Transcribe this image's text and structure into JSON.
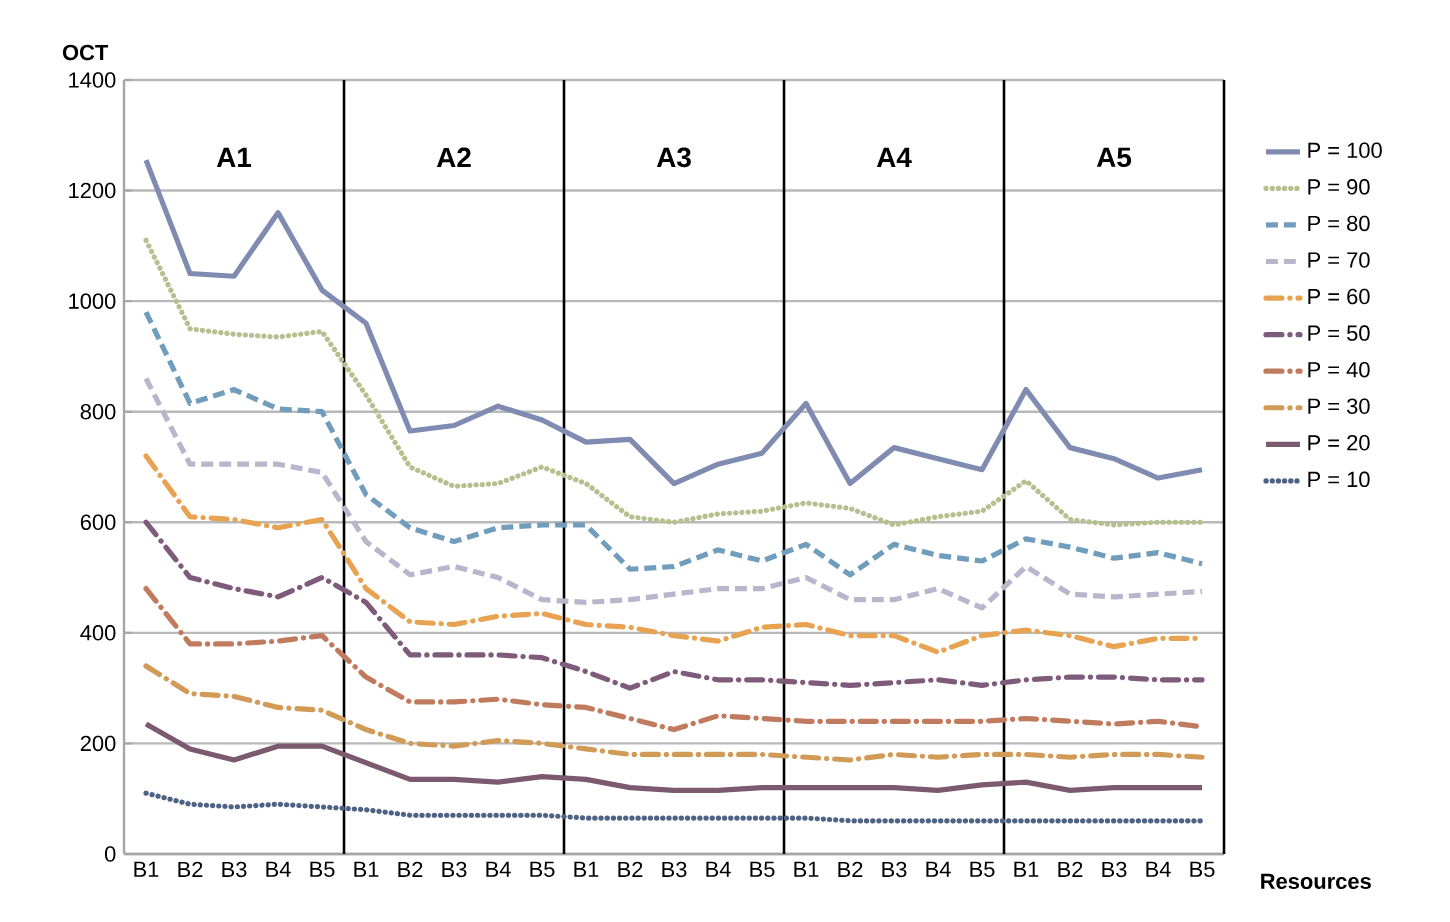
{
  "chart_data": {
    "type": "line",
    "categories": [
      "B1",
      "B2",
      "B3",
      "B4",
      "B5",
      "B1",
      "B2",
      "B3",
      "B4",
      "B5",
      "B1",
      "B2",
      "B3",
      "B4",
      "B5",
      "B1",
      "B2",
      "B3",
      "B4",
      "B5",
      "B1",
      "B2",
      "B3",
      "B4",
      "B5"
    ],
    "ylabel": "OCT",
    "xlabel": "Resources",
    "annotations": [
      "A1",
      "A2",
      "A3",
      "A4",
      "A5"
    ],
    "ylim": [
      0,
      1400
    ],
    "yticks": [
      0,
      200,
      400,
      600,
      800,
      1000,
      1200,
      1400
    ],
    "grid": "y",
    "legend": "right",
    "marker": "none",
    "series": [
      {
        "name": "P = 100",
        "color": "#7f8bb0",
        "line_style": "solid",
        "values": [
          1255,
          1050,
          1045,
          1160,
          1020,
          960,
          765,
          775,
          810,
          785,
          745,
          750,
          670,
          705,
          725,
          815,
          670,
          735,
          715,
          695,
          840,
          735,
          715,
          680,
          695
        ]
      },
      {
        "name": "P = 90",
        "color": "#b4c08e",
        "line_style": "dotted",
        "values": [
          1110,
          950,
          940,
          935,
          945,
          830,
          700,
          665,
          670,
          700,
          670,
          610,
          600,
          615,
          620,
          635,
          625,
          595,
          610,
          620,
          675,
          605,
          595,
          600,
          600
        ]
      },
      {
        "name": "P = 80",
        "color": "#6f9dbb",
        "line_style": "dashed",
        "values": [
          980,
          815,
          840,
          805,
          800,
          650,
          590,
          565,
          590,
          595,
          595,
          515,
          520,
          550,
          530,
          560,
          505,
          560,
          540,
          530,
          570,
          555,
          535,
          545,
          525
        ]
      },
      {
        "name": "P = 70",
        "color": "#b9b6cc",
        "line_style": "dashed",
        "values": [
          860,
          705,
          705,
          705,
          690,
          565,
          505,
          520,
          500,
          460,
          455,
          460,
          470,
          480,
          480,
          500,
          460,
          460,
          480,
          445,
          520,
          470,
          465,
          470,
          475
        ]
      },
      {
        "name": "P = 60",
        "color": "#e8a352",
        "line_style": "dashdot",
        "values": [
          720,
          610,
          605,
          590,
          605,
          480,
          420,
          415,
          430,
          435,
          415,
          410,
          395,
          385,
          410,
          415,
          395,
          395,
          365,
          395,
          405,
          395,
          375,
          390,
          390
        ]
      },
      {
        "name": "P = 50",
        "color": "#7e5b7a",
        "line_style": "dashdot",
        "values": [
          600,
          500,
          480,
          465,
          500,
          455,
          360,
          360,
          360,
          355,
          330,
          300,
          330,
          315,
          315,
          310,
          305,
          310,
          315,
          305,
          315,
          320,
          320,
          315,
          315
        ]
      },
      {
        "name": "P = 40",
        "color": "#c07b5f",
        "line_style": "dashdot",
        "values": [
          480,
          380,
          380,
          385,
          395,
          320,
          275,
          275,
          280,
          270,
          265,
          245,
          225,
          250,
          245,
          240,
          240,
          240,
          240,
          240,
          245,
          240,
          235,
          240,
          230
        ]
      },
      {
        "name": "P = 30",
        "color": "#d29a57",
        "line_style": "dashdot",
        "values": [
          340,
          290,
          285,
          265,
          260,
          225,
          200,
          195,
          205,
          200,
          190,
          180,
          180,
          180,
          180,
          175,
          170,
          180,
          175,
          180,
          180,
          175,
          180,
          180,
          175
        ]
      },
      {
        "name": "P = 20",
        "color": "#7b5a70",
        "line_style": "solid",
        "values": [
          235,
          190,
          170,
          195,
          195,
          165,
          135,
          135,
          130,
          140,
          135,
          120,
          115,
          115,
          120,
          120,
          120,
          120,
          115,
          125,
          130,
          115,
          120,
          120,
          120
        ]
      },
      {
        "name": "P = 10",
        "color": "#4e6384",
        "line_style": "dotted",
        "values": [
          110,
          90,
          85,
          90,
          85,
          80,
          70,
          70,
          70,
          70,
          65,
          65,
          65,
          65,
          65,
          65,
          60,
          60,
          60,
          60,
          60,
          60,
          60,
          60,
          60
        ]
      }
    ]
  }
}
